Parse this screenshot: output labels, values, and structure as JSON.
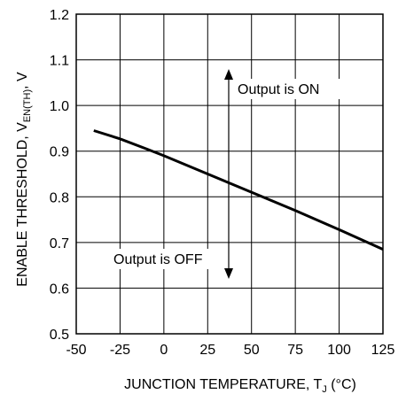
{
  "chart_data": {
    "type": "line",
    "xlabel": {
      "main": "JUNCTION TEMPERATURE, T",
      "sub": "J",
      "unit": " (°C)"
    },
    "ylabel": {
      "main": "ENABLE THRESHOLD, V",
      "sub": "EN(TH)",
      "unit": ", V"
    },
    "xlim": [
      -50,
      125
    ],
    "ylim": [
      0.5,
      1.2
    ],
    "xticks": [
      "-50",
      "-25",
      "0",
      "25",
      "50",
      "75",
      "100",
      "125"
    ],
    "yticks": [
      "0.5",
      "0.6",
      "0.7",
      "0.8",
      "0.9",
      "1.0",
      "1.1",
      "1.2"
    ],
    "grid": true,
    "series": [
      {
        "x": [
          -40,
          -25,
          -10,
          0,
          25,
          50,
          75,
          100,
          125
        ],
        "y": [
          0.945,
          0.927,
          0.905,
          0.89,
          0.85,
          0.81,
          0.77,
          0.728,
          0.685
        ]
      }
    ],
    "annotations": {
      "on_label": "Output is ON",
      "off_label": "Output is OFF"
    }
  }
}
